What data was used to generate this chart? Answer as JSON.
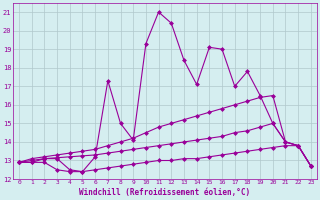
{
  "xlabel": "Windchill (Refroidissement éolien,°C)",
  "x": [
    0,
    1,
    2,
    3,
    4,
    5,
    6,
    7,
    8,
    9,
    10,
    11,
    12,
    13,
    14,
    15,
    16,
    17,
    18,
    19,
    20,
    21,
    22,
    23
  ],
  "line1": [
    12.9,
    12.9,
    13.1,
    13.1,
    12.5,
    12.4,
    13.2,
    17.3,
    15.0,
    14.1,
    19.3,
    21.0,
    20.4,
    18.4,
    17.1,
    19.1,
    19.0,
    17.0,
    17.8,
    16.5,
    15.0,
    14.0,
    13.8,
    12.7
  ],
  "line2": [
    12.9,
    13.1,
    13.2,
    13.3,
    13.4,
    13.5,
    13.6,
    13.8,
    14.0,
    14.2,
    14.5,
    14.8,
    15.0,
    15.2,
    15.4,
    15.6,
    15.8,
    16.0,
    16.2,
    16.4,
    16.5,
    14.0,
    13.8,
    12.7
  ],
  "line3": [
    12.9,
    13.0,
    13.1,
    13.15,
    13.2,
    13.25,
    13.3,
    13.4,
    13.5,
    13.6,
    13.7,
    13.8,
    13.9,
    14.0,
    14.1,
    14.2,
    14.3,
    14.5,
    14.6,
    14.8,
    15.0,
    14.0,
    13.8,
    12.7
  ],
  "line4": [
    12.9,
    12.9,
    12.9,
    12.5,
    12.4,
    12.4,
    12.5,
    12.6,
    12.7,
    12.8,
    12.9,
    13.0,
    13.0,
    13.1,
    13.1,
    13.2,
    13.3,
    13.4,
    13.5,
    13.6,
    13.7,
    13.8,
    13.8,
    12.7
  ],
  "line_color": "#990099",
  "bg_color": "#d5eef0",
  "grid_color": "#b0c8cc",
  "ylim": [
    12,
    21.5
  ],
  "xlim": [
    -0.5,
    23.5
  ],
  "yticks": [
    12,
    13,
    14,
    15,
    16,
    17,
    18,
    19,
    20,
    21
  ],
  "xticks": [
    0,
    1,
    2,
    3,
    4,
    5,
    6,
    7,
    8,
    9,
    10,
    11,
    12,
    13,
    14,
    15,
    16,
    17,
    18,
    19,
    20,
    21,
    22,
    23
  ],
  "markersize": 2.5
}
